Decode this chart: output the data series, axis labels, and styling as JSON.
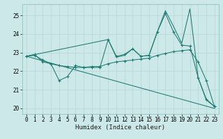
{
  "title": "",
  "xlabel": "Humidex (Indice chaleur)",
  "xlim": [
    -0.5,
    23.5
  ],
  "ylim": [
    19.7,
    25.6
  ],
  "yticks": [
    20,
    21,
    22,
    23,
    24,
    25
  ],
  "xticks": [
    0,
    1,
    2,
    3,
    4,
    5,
    6,
    7,
    8,
    9,
    10,
    11,
    12,
    13,
    14,
    15,
    16,
    17,
    18,
    19,
    20,
    21,
    22,
    23
  ],
  "bg_color": "#cce8e8",
  "grid_color": "#b0d4d4",
  "line_color": "#1e7a70",
  "lines": [
    {
      "x": [
        0,
        1,
        2,
        3,
        4,
        5,
        6,
        7,
        8,
        9,
        10,
        11,
        12,
        13,
        14,
        15,
        16,
        17,
        18,
        19,
        20,
        21,
        22,
        23
      ],
      "y": [
        22.8,
        22.9,
        22.5,
        22.4,
        21.5,
        21.7,
        22.3,
        22.2,
        22.2,
        22.2,
        23.7,
        22.8,
        22.9,
        23.2,
        22.8,
        22.85,
        24.1,
        25.1,
        24.1,
        23.4,
        23.35,
        21.65,
        20.5,
        20.1
      ],
      "marker": true
    },
    {
      "x": [
        0,
        1,
        2,
        3,
        4,
        5,
        6,
        7,
        8,
        9,
        10,
        11,
        12,
        13,
        14,
        15,
        16,
        17,
        18,
        19,
        20,
        21,
        22,
        23
      ],
      "y": [
        22.8,
        22.85,
        22.6,
        22.4,
        22.3,
        22.25,
        22.2,
        22.2,
        22.25,
        22.25,
        22.4,
        22.5,
        22.55,
        22.6,
        22.65,
        22.7,
        22.85,
        22.95,
        23.05,
        23.1,
        23.15,
        22.5,
        21.5,
        20.1
      ],
      "marker": true
    },
    {
      "x": [
        0,
        10,
        11,
        12,
        13,
        14,
        15,
        16,
        17,
        18,
        19,
        20,
        21,
        22,
        23
      ],
      "y": [
        22.8,
        23.7,
        22.75,
        22.85,
        23.2,
        22.8,
        22.85,
        24.1,
        25.25,
        24.4,
        23.5,
        25.35,
        21.65,
        20.45,
        20.1
      ],
      "marker": false
    },
    {
      "x": [
        0,
        23
      ],
      "y": [
        22.8,
        20.0
      ],
      "marker": false
    }
  ]
}
